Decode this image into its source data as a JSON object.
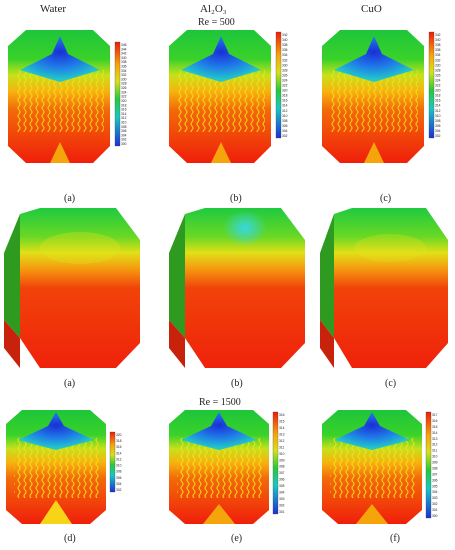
{
  "titles": [
    "Water",
    "Al₂O₃",
    "CuO"
  ],
  "re_labels": [
    "Re = 500",
    "Re = 1500"
  ],
  "row1": {
    "captions": [
      "(a)",
      "(b)",
      "(c)"
    ],
    "scales": [
      [
        "346",
        "344",
        "342",
        "340",
        "338",
        "336",
        "334",
        "332",
        "330",
        "328",
        "326",
        "324",
        "322",
        "320",
        "318",
        "316",
        "314",
        "312",
        "310",
        "308",
        "306",
        "304",
        "302",
        "300"
      ],
      [
        "342",
        "340",
        "338",
        "336",
        "334",
        "332",
        "330",
        "328",
        "326",
        "324",
        "322",
        "320",
        "318",
        "316",
        "314",
        "312",
        "310",
        "308",
        "306",
        "304",
        "302"
      ],
      [
        "342",
        "340",
        "338",
        "336",
        "334",
        "332",
        "330",
        "328",
        "326",
        "324",
        "322",
        "320",
        "318",
        "316",
        "314",
        "312",
        "310",
        "308",
        "306",
        "304",
        "302"
      ]
    ]
  },
  "row2": {
    "captions": [
      "(a)",
      "(b)",
      "(c)"
    ]
  },
  "row3": {
    "captions": [
      "(d)",
      "(e)",
      "(f)"
    ],
    "scales": [
      [
        "320",
        "318",
        "316",
        "314",
        "312",
        "310",
        "308",
        "306",
        "304",
        "302"
      ],
      [
        "316",
        "315",
        "314",
        "313",
        "312",
        "311",
        "310",
        "309",
        "308",
        "307",
        "306",
        "305",
        "304",
        "303",
        "302",
        "301"
      ],
      [
        "317",
        "316",
        "315",
        "314",
        "313",
        "312",
        "311",
        "310",
        "309",
        "308",
        "307",
        "306",
        "305",
        "304",
        "303",
        "302",
        "301",
        "300"
      ]
    ]
  },
  "colors": {
    "hot": "#f01e0a",
    "warm": "#f27a0a",
    "mid": "#d9df18",
    "cool": "#1ec53a",
    "cold": "#1a3ae0",
    "edge": "#2b8a22"
  }
}
